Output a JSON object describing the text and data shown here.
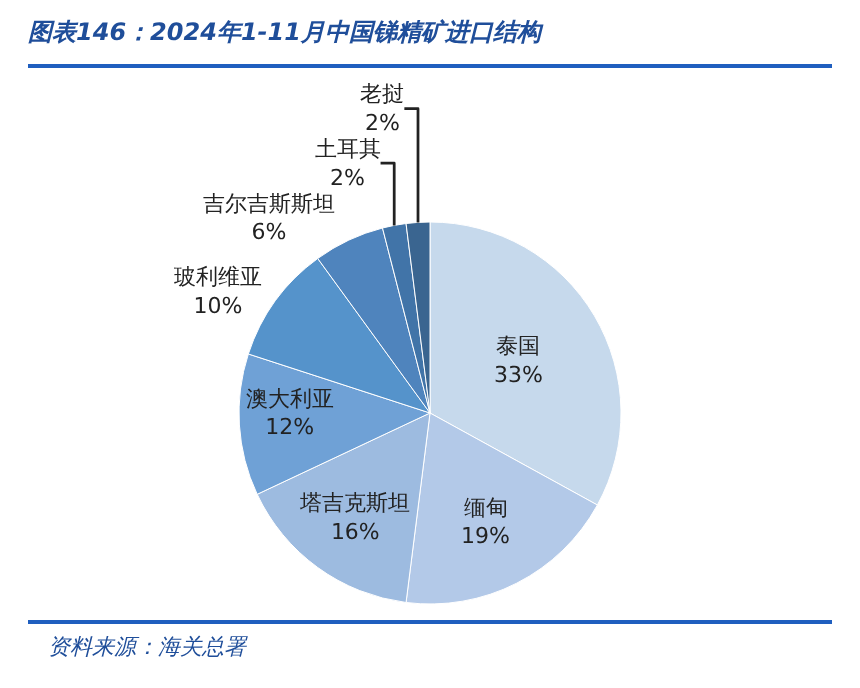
{
  "chart_data": {
    "type": "pie",
    "title": "图表146：2024年1-11月中国锑精矿进口结构",
    "categories": [
      "泰国",
      "缅甸",
      "塔吉克斯坦",
      "澳大利亚",
      "玻利维亚",
      "吉尔吉斯斯坦",
      "土耳其",
      "老挝"
    ],
    "values": [
      33,
      19,
      16,
      12,
      10,
      6,
      2,
      2
    ],
    "value_labels": [
      "33%",
      "19%",
      "16%",
      "12%",
      "10%",
      "6%",
      "2%",
      "2%"
    ],
    "colors": [
      "#c6d9ec",
      "#b3c9e8",
      "#9dbbe0",
      "#6fa1d6",
      "#5593cb",
      "#4f84bd",
      "#4174a8",
      "#3a6590"
    ],
    "annotations": [
      "资料来源：海关总署"
    ]
  }
}
